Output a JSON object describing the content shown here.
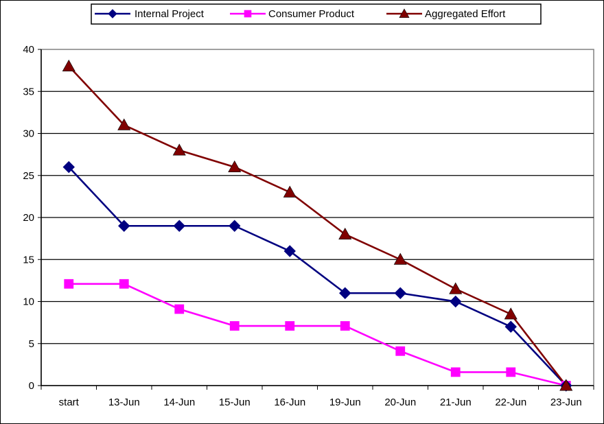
{
  "chart_data": {
    "type": "line",
    "title": "",
    "xlabel": "",
    "ylabel": "",
    "categories": [
      "start",
      "13-Jun",
      "14-Jun",
      "15-Jun",
      "16-Jun",
      "19-Jun",
      "20-Jun",
      "21-Jun",
      "22-Jun",
      "23-Jun"
    ],
    "ylim": [
      0,
      40
    ],
    "yticks": [
      "0",
      "5",
      "10",
      "15",
      "20",
      "25",
      "30",
      "35",
      "40"
    ],
    "grid": true,
    "legend_position": "top",
    "series": [
      {
        "name": "Internal Project",
        "color": "#000080",
        "marker": "diamond",
        "values": [
          26,
          19,
          19,
          19,
          16,
          11,
          11,
          10,
          7,
          0
        ]
      },
      {
        "name": "Consumer Product",
        "color": "#ff00ff",
        "marker": "square",
        "values": [
          12.1,
          12.1,
          9.1,
          7.1,
          7.1,
          7.1,
          4.1,
          1.6,
          1.6,
          0
        ]
      },
      {
        "name": "Aggregated Effort",
        "color": "#800000",
        "marker": "triangle",
        "values": [
          38,
          31,
          28,
          26,
          23,
          18,
          15,
          11.5,
          8.5,
          0
        ]
      }
    ]
  }
}
